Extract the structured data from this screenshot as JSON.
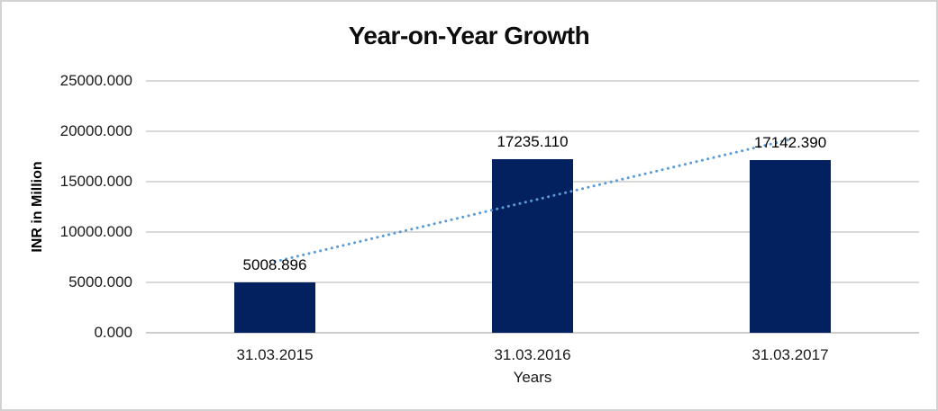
{
  "chart_data": {
    "type": "bar",
    "title": "Year-on-Year Growth",
    "categories": [
      "31.03.2015",
      "31.03.2016",
      "31.03.2017"
    ],
    "values": [
      5008.896,
      17235.11,
      17142.39
    ],
    "data_labels": [
      "5008.896",
      "17235.110",
      "17142.390"
    ],
    "xlabel": "Years",
    "ylabel": "INR in Million",
    "ylim": [
      0,
      25000
    ],
    "ytick_interval": 5000,
    "ytick_labels": [
      "0.000",
      "5000.000",
      "10000.000",
      "15000.000",
      "20000.000",
      "25000.000"
    ],
    "grid": true,
    "legend": false,
    "trendline": {
      "type": "linear",
      "style": "dotted"
    },
    "colors": {
      "bar": "#04215f",
      "trendline": "#5b9bd5",
      "gridline": "#d9d9d9",
      "text": "#000000",
      "frame_border": "#d2d2d2"
    }
  }
}
